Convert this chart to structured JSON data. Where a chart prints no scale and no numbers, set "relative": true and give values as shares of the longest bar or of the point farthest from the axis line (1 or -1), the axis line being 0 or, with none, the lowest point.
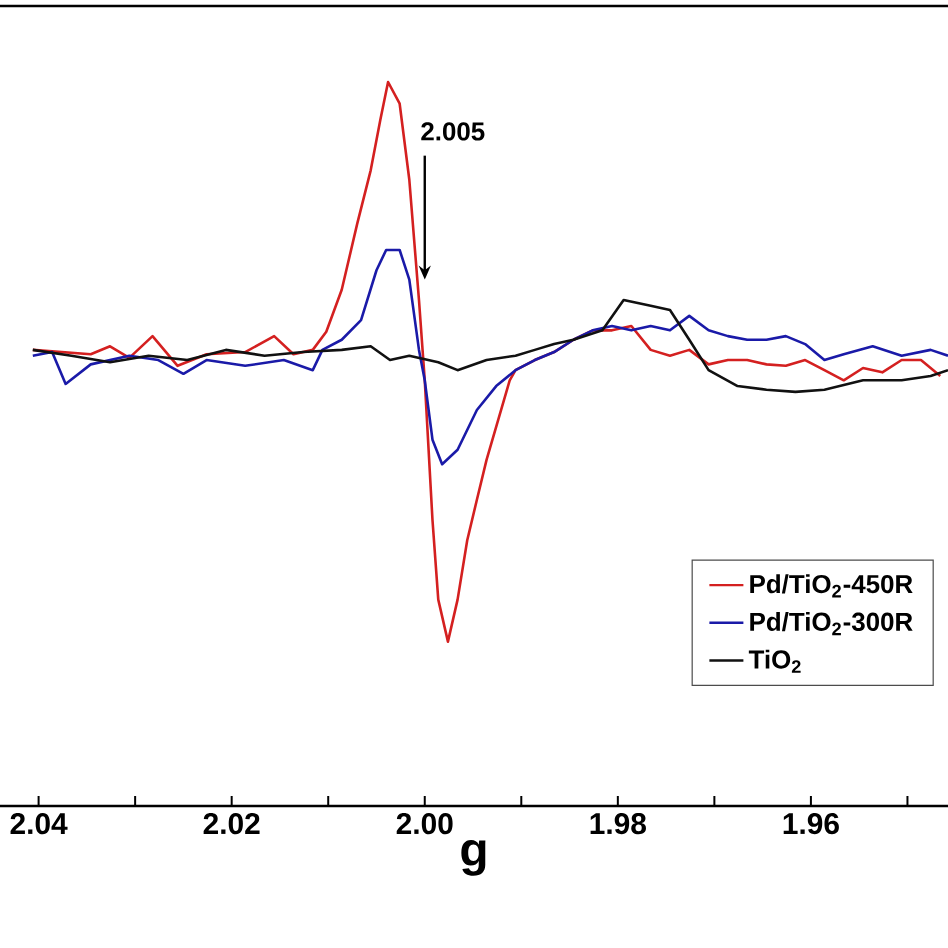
{
  "chart_data": {
    "type": "line",
    "xlabel": "g",
    "relative": true,
    "xlim": [
      2.044,
      1.9458
    ],
    "xticks": [
      2.04,
      {
        "value": 2.03,
        "label": null
      },
      2.02,
      {
        "value": 2.01,
        "label": null
      },
      {
        "value": 2.0,
        "label": "2.00"
      },
      {
        "value": 1.99,
        "label": null
      },
      1.98,
      {
        "value": 1.97,
        "label": null
      },
      1.96,
      {
        "value": 1.95,
        "label": null
      }
    ],
    "tick_labels": "x",
    "legend": "right",
    "grid": false,
    "marker": "none",
    "line_style": "solid",
    "annotations": [
      {
        "text": "2.005",
        "x": 2.0,
        "y": 0.727
      }
    ],
    "series": [
      {
        "name": "Pd/TiO$_{2}$-450R",
        "color": "#d42020",
        "x": [
          2.0406,
          2.0376,
          2.0346,
          2.0326,
          2.0306,
          2.0282,
          2.0256,
          2.0226,
          2.0186,
          2.0156,
          2.0136,
          2.0116,
          2.0102,
          2.0086,
          2.007,
          2.0056,
          2.0046,
          2.0038,
          2.0026,
          2.0016,
          2.0006,
          2.0,
          1.9992,
          1.9986,
          1.9976,
          1.9966,
          1.9956,
          1.9946,
          1.9936,
          1.9912,
          1.9906,
          1.9886,
          1.9866,
          1.9846,
          1.9826,
          1.9806,
          1.9786,
          1.9766,
          1.9746,
          1.9726,
          1.9706,
          1.9686,
          1.9666,
          1.9646,
          1.9626,
          1.9606,
          1.9586,
          1.9566,
          1.9546,
          1.9526,
          1.9506,
          1.9486,
          1.9466
        ],
        "values": [
          0.63,
          0.627,
          0.624,
          0.635,
          0.619,
          0.649,
          0.608,
          0.624,
          0.627,
          0.649,
          0.624,
          0.63,
          0.655,
          0.713,
          0.804,
          0.878,
          0.948,
          1,
          0.97,
          0.865,
          0.699,
          0.588,
          0.395,
          0.285,
          0.227,
          0.285,
          0.367,
          0.423,
          0.478,
          0.588,
          0.602,
          0.616,
          0.627,
          0.644,
          0.657,
          0.657,
          0.663,
          0.63,
          0.622,
          0.63,
          0.61,
          0.616,
          0.616,
          0.61,
          0.608,
          0.616,
          0.602,
          0.588,
          0.605,
          0.599,
          0.616,
          0.616,
          0.594
        ]
      },
      {
        "name": "Pd/TiO$_{2}$-300R",
        "color": "#1a1aa8",
        "x": [
          2.0406,
          2.0386,
          2.0372,
          2.0346,
          2.0306,
          2.0276,
          2.025,
          2.0226,
          2.0186,
          2.0146,
          2.0116,
          2.0106,
          2.0086,
          2.0066,
          2.005,
          2.004,
          2.0026,
          2.0016,
          2.0006,
          2.0,
          1.9992,
          1.9982,
          1.9966,
          1.9946,
          1.9926,
          1.9906,
          1.9886,
          1.9866,
          1.9846,
          1.9826,
          1.9806,
          1.9786,
          1.9766,
          1.9746,
          1.9726,
          1.9706,
          1.9686,
          1.9666,
          1.9646,
          1.9626,
          1.9606,
          1.9586,
          1.9566,
          1.9536,
          1.9506,
          1.9476,
          1.9458
        ],
        "values": [
          0.622,
          0.627,
          0.583,
          0.61,
          0.622,
          0.616,
          0.597,
          0.616,
          0.608,
          0.616,
          0.602,
          0.63,
          0.644,
          0.671,
          0.74,
          0.768,
          0.768,
          0.727,
          0.63,
          0.588,
          0.506,
          0.472,
          0.492,
          0.547,
          0.58,
          0.602,
          0.616,
          0.627,
          0.644,
          0.657,
          0.663,
          0.657,
          0.663,
          0.657,
          0.677,
          0.657,
          0.649,
          0.644,
          0.644,
          0.649,
          0.638,
          0.616,
          0.624,
          0.635,
          0.622,
          0.63,
          0.622
        ]
      },
      {
        "name": "TiO$_{2}$",
        "color": "#111111",
        "x": [
          2.0406,
          2.0366,
          2.0326,
          2.0286,
          2.0246,
          2.0206,
          2.0166,
          2.0126,
          2.0086,
          2.0056,
          2.0036,
          2.0016,
          1.9986,
          1.9966,
          1.9936,
          1.9906,
          1.9886,
          1.9866,
          1.9846,
          1.9816,
          1.9794,
          1.9766,
          1.9746,
          1.9726,
          1.9706,
          1.9676,
          1.9646,
          1.9616,
          1.9586,
          1.9546,
          1.9506,
          1.9476,
          1.9458
        ],
        "values": [
          0.63,
          0.622,
          0.613,
          0.622,
          0.616,
          0.63,
          0.622,
          0.627,
          0.63,
          0.635,
          0.616,
          0.622,
          0.613,
          0.602,
          0.616,
          0.622,
          0.63,
          0.638,
          0.644,
          0.657,
          0.699,
          0.691,
          0.685,
          0.644,
          0.602,
          0.58,
          0.575,
          0.572,
          0.575,
          0.588,
          0.588,
          0.594,
          0.602
        ]
      }
    ]
  }
}
